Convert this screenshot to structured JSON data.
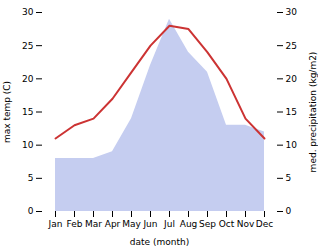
{
  "chart_data": {
    "type": "line",
    "xlabel": "date (month)",
    "ylabel": "max temp (C)",
    "y2label": "med. precipitation (kg/m2)",
    "categories": [
      "Jan",
      "Feb",
      "Mar",
      "Apr",
      "May",
      "Jun",
      "Jul",
      "Aug",
      "Sep",
      "Oct",
      "Nov",
      "Dec"
    ],
    "series": [
      {
        "type": "area",
        "axis": "y2",
        "color": "#c5cdf0",
        "values": [
          8,
          8,
          8,
          9,
          14,
          22,
          29,
          24,
          21,
          13,
          13,
          12
        ]
      },
      {
        "type": "line",
        "color": "#cc3333",
        "values": [
          11,
          13,
          14,
          17,
          21,
          25,
          28,
          27.5,
          24,
          20,
          14,
          11
        ]
      }
    ],
    "ylim": [
      0,
      30
    ],
    "yticks": [
      0,
      5,
      10,
      15,
      20,
      25,
      30
    ],
    "y2lim": [
      0,
      30
    ],
    "y2ticks": [
      0,
      5,
      10,
      15,
      20,
      25,
      30
    ],
    "grid": false
  }
}
